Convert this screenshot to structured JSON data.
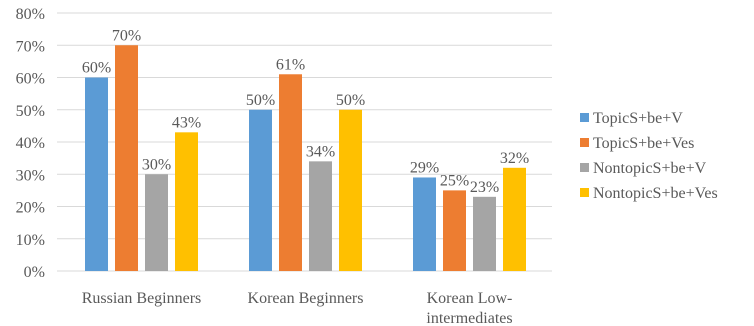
{
  "chart_data": {
    "type": "bar",
    "title": "",
    "xlabel": "",
    "ylabel": "",
    "ylim": [
      0,
      80
    ],
    "yticks": [
      0,
      10,
      20,
      30,
      40,
      50,
      60,
      70,
      80
    ],
    "ytick_labels": [
      "0%",
      "10%",
      "20%",
      "30%",
      "40%",
      "50%",
      "60%",
      "70%",
      "80%"
    ],
    "grid": true,
    "legend_position": "right",
    "categories": [
      [
        "Russian Beginners"
      ],
      [
        "Korean Beginners"
      ],
      [
        "Korean Low-",
        "intermediates"
      ]
    ],
    "series": [
      {
        "name": "TopicS+be+V",
        "color": "#5b9bd5",
        "values": [
          60,
          50,
          29
        ],
        "labels": [
          "60%",
          "50%",
          "29%"
        ]
      },
      {
        "name": "TopicS+be+Ves",
        "color": "#ed7d31",
        "values": [
          70,
          61,
          25
        ],
        "labels": [
          "70%",
          "61%",
          "25%"
        ]
      },
      {
        "name": "NontopicS+be+V",
        "color": "#a5a5a5",
        "values": [
          30,
          34,
          23
        ],
        "labels": [
          "30%",
          "34%",
          "23%"
        ]
      },
      {
        "name": "NontopicS+be+Ves",
        "color": "#ffc000",
        "values": [
          43,
          50,
          32
        ],
        "labels": [
          "43%",
          "50%",
          "32%"
        ]
      }
    ]
  }
}
